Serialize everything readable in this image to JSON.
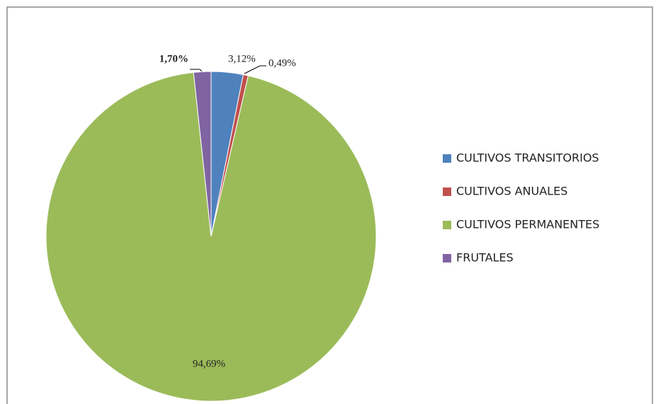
{
  "chart_data": {
    "type": "pie",
    "categories": [
      "CULTIVOS TRANSITORIOS",
      "CULTIVOS ANUALES",
      "CULTIVOS PERMANENTES",
      "FRUTALES"
    ],
    "values": [
      3.12,
      0.49,
      94.69,
      1.7
    ],
    "value_labels": [
      "3,12%",
      "0,49%",
      "94,69%",
      "1,70%"
    ],
    "colors": [
      "#4f81bd",
      "#c0504d",
      "#9bbb59",
      "#8064a2"
    ],
    "legend": "right"
  }
}
